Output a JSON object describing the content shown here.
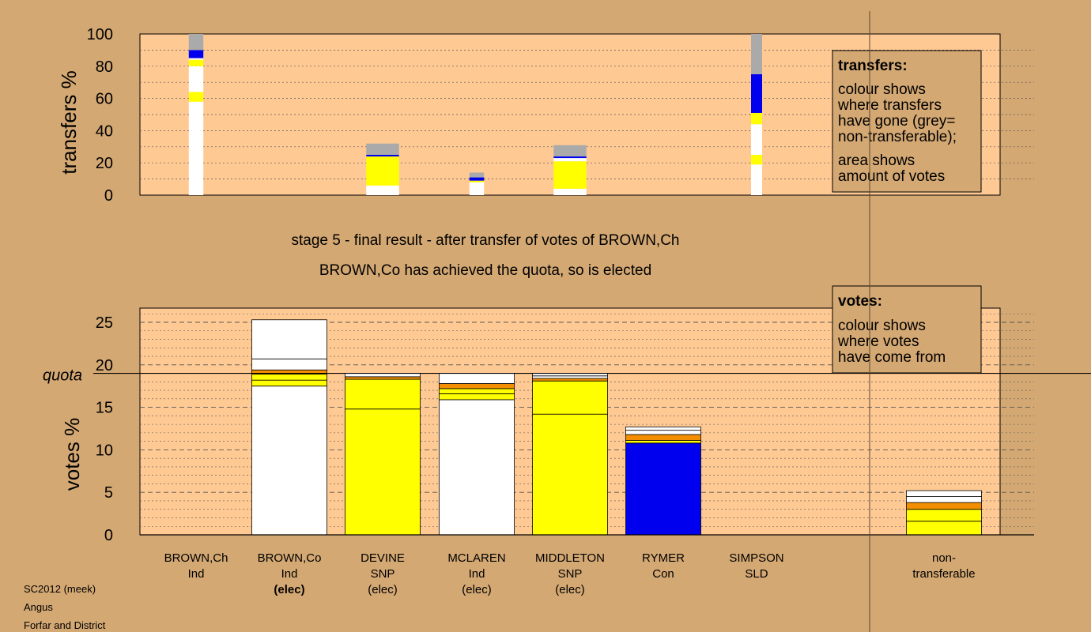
{
  "stage_text": "stage 5 - final result - after transfer of votes of BROWN,Ch",
  "elected_text": "BROWN,Co has achieved the quota, so is elected",
  "transfers_legend": {
    "title": "transfers:",
    "lines": [
      "colour shows",
      "where transfers",
      "have gone (grey=",
      "non-transferable);",
      "area shows",
      "amount of votes"
    ]
  },
  "votes_legend": {
    "title": "votes:",
    "lines": [
      "colour shows",
      "where votes",
      "have come from"
    ]
  },
  "footer": [
    "SC2012 (meek)",
    "Angus",
    "Forfar and District"
  ],
  "colors": {
    "background": "#D4A873",
    "plot": "#FFC993",
    "white": "#FFFFFF",
    "yellow": "#FFFF00",
    "orange": "#F28E00",
    "blue": "#0000EE",
    "grey": "#AAAAAA"
  },
  "chart_data": [
    {
      "type": "bar",
      "ylabel": "transfers %",
      "ylim": [
        0,
        100
      ],
      "yticks": [
        0,
        20,
        40,
        60,
        80,
        100
      ],
      "bars": [
        {
          "candidate": "BROWN,Ch",
          "width_share": 0.1,
          "segments": [
            {
              "color": "white",
              "from": 0,
              "to": 58
            },
            {
              "color": "yellow",
              "from": 58,
              "to": 64
            },
            {
              "color": "white",
              "from": 64,
              "to": 80
            },
            {
              "color": "yellow",
              "from": 80,
              "to": 84
            },
            {
              "color": "white",
              "from": 84,
              "to": 85
            },
            {
              "color": "blue",
              "from": 85,
              "to": 90
            },
            {
              "color": "grey",
              "from": 90,
              "to": 100
            }
          ]
        },
        {
          "candidate": "DEVINE",
          "width_share": 0.32,
          "segments": [
            {
              "color": "white",
              "from": 0,
              "to": 6
            },
            {
              "color": "yellow",
              "from": 6,
              "to": 24
            },
            {
              "color": "blue",
              "from": 24,
              "to": 25
            },
            {
              "color": "grey",
              "from": 25,
              "to": 32
            }
          ]
        },
        {
          "candidate": "MCLAREN",
          "width_share": 0.1,
          "segments": [
            {
              "color": "white",
              "from": 0,
              "to": 8
            },
            {
              "color": "yellow",
              "from": 8,
              "to": 9
            },
            {
              "color": "blue",
              "from": 9,
              "to": 11
            },
            {
              "color": "grey",
              "from": 11,
              "to": 14
            }
          ]
        },
        {
          "candidate": "MIDDLETON",
          "width_share": 0.32,
          "segments": [
            {
              "color": "white",
              "from": 0,
              "to": 4
            },
            {
              "color": "yellow",
              "from": 4,
              "to": 21
            },
            {
              "color": "white",
              "from": 21,
              "to": 23
            },
            {
              "color": "blue",
              "from": 23,
              "to": 24
            },
            {
              "color": "grey",
              "from": 24,
              "to": 31
            }
          ]
        },
        {
          "candidate": "RYMER",
          "width_share": 0.04,
          "segments": [
            {
              "color": "white",
              "from": 0,
              "to": 19
            },
            {
              "color": "yellow",
              "from": 19,
              "to": 25
            },
            {
              "color": "white",
              "from": 25,
              "to": 44
            },
            {
              "color": "yellow",
              "from": 44,
              "to": 51
            },
            {
              "color": "blue",
              "from": 51,
              "to": 75
            },
            {
              "color": "grey",
              "from": 75,
              "to": 100
            }
          ]
        }
      ]
    },
    {
      "type": "bar",
      "ylabel": "votes %",
      "ylim": [
        0,
        25
      ],
      "yticks": [
        0,
        5,
        10,
        15,
        20,
        25
      ],
      "quota": 19.0,
      "quota_label": "quota",
      "candidates": [
        {
          "name": "BROWN,Ch",
          "party": "Ind",
          "status": "",
          "total": 0,
          "segments": []
        },
        {
          "name": "BROWN,Co",
          "party": "Ind",
          "status": "(elec)",
          "status_bold": true,
          "total": 25.3,
          "segments": [
            {
              "color": "white",
              "from": 0,
              "to": 17.5
            },
            {
              "color": "yellow",
              "from": 17.5,
              "to": 18.2
            },
            {
              "color": "yellow",
              "from": 18.2,
              "to": 18.9
            },
            {
              "color": "orange",
              "from": 18.9,
              "to": 19.4
            },
            {
              "color": "white",
              "from": 19.4,
              "to": 20.7
            },
            {
              "color": "white",
              "from": 20.7,
              "to": 25.3
            }
          ]
        },
        {
          "name": "DEVINE",
          "party": "SNP",
          "status": "(elec)",
          "status_bold": false,
          "total": 19.0,
          "segments": [
            {
              "color": "yellow",
              "from": 0,
              "to": 14.8
            },
            {
              "color": "yellow",
              "from": 14.8,
              "to": 18.3
            },
            {
              "color": "orange",
              "from": 18.3,
              "to": 18.6
            },
            {
              "color": "white",
              "from": 18.6,
              "to": 19.0
            }
          ]
        },
        {
          "name": "MCLAREN",
          "party": "Ind",
          "status": "(elec)",
          "status_bold": false,
          "total": 19.0,
          "segments": [
            {
              "color": "white",
              "from": 0,
              "to": 15.9
            },
            {
              "color": "yellow",
              "from": 15.9,
              "to": 16.6
            },
            {
              "color": "yellow",
              "from": 16.6,
              "to": 17.2
            },
            {
              "color": "orange",
              "from": 17.2,
              "to": 17.8
            },
            {
              "color": "white",
              "from": 17.8,
              "to": 19.0
            }
          ]
        },
        {
          "name": "MIDDLETON",
          "party": "SNP",
          "status": "(elec)",
          "status_bold": false,
          "total": 19.0,
          "segments": [
            {
              "color": "yellow",
              "from": 0,
              "to": 14.2
            },
            {
              "color": "yellow",
              "from": 14.2,
              "to": 18.1
            },
            {
              "color": "orange",
              "from": 18.1,
              "to": 18.4
            },
            {
              "color": "white",
              "from": 18.4,
              "to": 18.7
            },
            {
              "color": "white",
              "from": 18.7,
              "to": 19.0
            }
          ]
        },
        {
          "name": "RYMER",
          "party": "Con",
          "status": "",
          "status_bold": false,
          "total": 12.7,
          "segments": [
            {
              "color": "blue",
              "from": 0,
              "to": 10.8
            },
            {
              "color": "yellow",
              "from": 10.8,
              "to": 11.1
            },
            {
              "color": "orange",
              "from": 11.1,
              "to": 11.8
            },
            {
              "color": "white",
              "from": 11.8,
              "to": 12.3
            },
            {
              "color": "white",
              "from": 12.3,
              "to": 12.7
            }
          ]
        },
        {
          "name": "SIMPSON",
          "party": "SLD",
          "status": "",
          "status_bold": false,
          "total": 0,
          "segments": []
        }
      ],
      "nontransferable": {
        "name": "non-",
        "party": "transferable",
        "total": 5.2,
        "segments": [
          {
            "color": "yellow",
            "from": 0,
            "to": 1.6
          },
          {
            "color": "yellow",
            "from": 1.6,
            "to": 3.0
          },
          {
            "color": "orange",
            "from": 3.0,
            "to": 3.8
          },
          {
            "color": "white",
            "from": 3.8,
            "to": 4.5
          },
          {
            "color": "white",
            "from": 4.5,
            "to": 5.2
          }
        ]
      }
    }
  ]
}
